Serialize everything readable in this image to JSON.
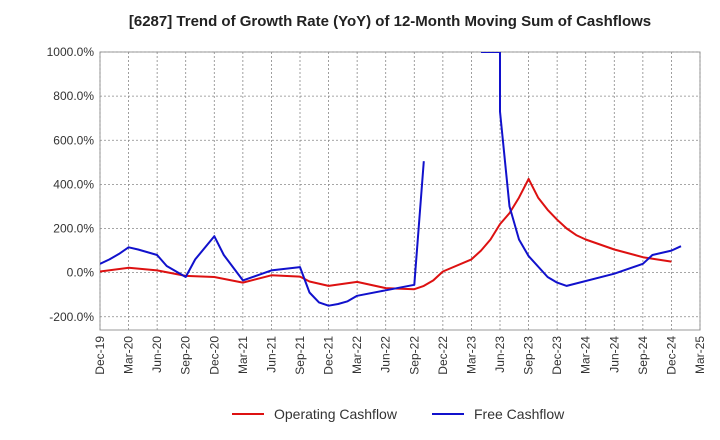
{
  "chart_data": {
    "type": "line",
    "title": "[6287]  Trend of Growth Rate (YoY) of 12-Month Moving Sum of Cashflows",
    "xlabel": "",
    "ylabel": "",
    "x_ticks": [
      "Dec-19",
      "Mar-20",
      "Jun-20",
      "Sep-20",
      "Dec-20",
      "Mar-21",
      "Jun-21",
      "Sep-21",
      "Dec-21",
      "Mar-22",
      "Jun-22",
      "Sep-22",
      "Dec-22",
      "Mar-23",
      "Jun-23",
      "Sep-23",
      "Dec-23",
      "Mar-24",
      "Jun-24",
      "Sep-24",
      "Dec-24",
      "Mar-25"
    ],
    "y_ticks": [
      "-200.0%",
      "0.0%",
      "200.0%",
      "400.0%",
      "600.0%",
      "800.0%",
      "1000.0%"
    ],
    "y_tick_values": [
      -200,
      0,
      200,
      400,
      600,
      800,
      1000
    ],
    "ylim": [
      -260,
      1000
    ],
    "grid": true,
    "legend_position": "bottom",
    "series": [
      {
        "name": "Operating Cashflow",
        "color": "#dd1111",
        "points": [
          [
            "Dec-19",
            5
          ],
          [
            "Mar-20",
            22
          ],
          [
            "Jun-20",
            10
          ],
          [
            "Sep-20",
            -15
          ],
          [
            "Dec-20",
            -20
          ],
          [
            "Mar-21",
            -45
          ],
          [
            "Jun-21",
            -12
          ],
          [
            "Sep-21",
            -18
          ],
          [
            "Oct-21",
            -40
          ],
          [
            "Dec-21",
            -60
          ],
          [
            "Mar-22",
            -42
          ],
          [
            "Jun-22",
            -70
          ],
          [
            "Sep-22",
            -75
          ],
          [
            "Oct-22",
            -60
          ],
          [
            "Nov-22",
            -35
          ],
          [
            "Dec-22",
            5
          ],
          [
            "Mar-23",
            60
          ],
          [
            "Apr-23",
            100
          ],
          [
            "May-23",
            150
          ],
          [
            "Jun-23",
            220
          ],
          [
            "Jul-23",
            270
          ],
          [
            "Aug-23",
            340
          ],
          [
            "Sep-23",
            425
          ],
          [
            "Oct-23",
            340
          ],
          [
            "Nov-23",
            285
          ],
          [
            "Dec-23",
            240
          ],
          [
            "Jan-24",
            200
          ],
          [
            "Feb-24",
            170
          ],
          [
            "Mar-24",
            150
          ],
          [
            "Jun-24",
            105
          ],
          [
            "Sep-24",
            70
          ],
          [
            "Dec-24",
            50
          ]
        ]
      },
      {
        "name": "Free Cashflow",
        "color": "#1111cc",
        "points": [
          [
            "Dec-19",
            40
          ],
          [
            "Jan-20",
            60
          ],
          [
            "Feb-20",
            85
          ],
          [
            "Mar-20",
            115
          ],
          [
            "Apr-20",
            105
          ],
          [
            "Jun-20",
            80
          ],
          [
            "Jul-20",
            30
          ],
          [
            "Sep-20",
            -20
          ],
          [
            "Oct-20",
            60
          ],
          [
            "Dec-20",
            165
          ],
          [
            "Jan-21",
            80
          ],
          [
            "Mar-21",
            -35
          ],
          [
            "Jun-21",
            10
          ],
          [
            "Sep-21",
            25
          ],
          [
            "Oct-21",
            -90
          ],
          [
            "Nov-21",
            -135
          ],
          [
            "Dec-21",
            -150
          ],
          [
            "Jan-22",
            -142
          ],
          [
            "Feb-22",
            -130
          ],
          [
            "Mar-22",
            -105
          ],
          [
            "Jun-22",
            -80
          ],
          [
            "Sep-22",
            -55
          ],
          [
            "Oct-22",
            505
          ],
          null,
          [
            "Apr-23",
            1000
          ],
          [
            "Jun-23",
            1000
          ],
          [
            "Jun-23",
            730
          ],
          [
            "Jul-23",
            300
          ],
          [
            "Aug-23",
            150
          ],
          [
            "Sep-23",
            75
          ],
          [
            "Nov-23",
            -20
          ],
          [
            "Dec-23",
            -45
          ],
          [
            "Jan-24",
            -60
          ],
          [
            "Jun-24",
            -5
          ],
          [
            "Sep-24",
            40
          ],
          [
            "Oct-24",
            80
          ],
          [
            "Dec-24",
            100
          ],
          [
            "Jan-25",
            120
          ]
        ]
      }
    ]
  }
}
